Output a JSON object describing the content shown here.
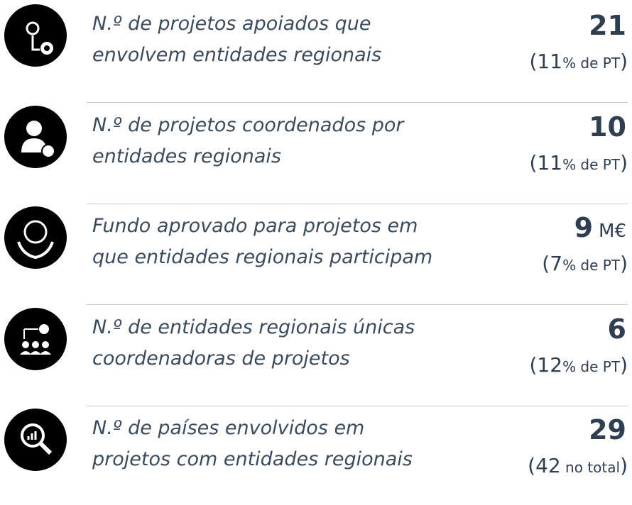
{
  "items": [
    {
      "line1": "N.º de projetos apoiados que",
      "line2": "envolvem entidades regionais",
      "value": 21,
      "unit": null,
      "sub": [
        "(",
        "11",
        "% de PT",
        ")"
      ]
    },
    {
      "line1": "N.º de projetos coordenados por",
      "line2": "entidades regionais",
      "value": 10,
      "unit": null,
      "sub": [
        "(",
        "11",
        "% de PT",
        ")"
      ]
    },
    {
      "line1": "Fundo aprovado para projetos em",
      "line2": "que entidades regionais participam",
      "value": 9,
      "unit": "M€",
      "sub": [
        "(",
        "7",
        "% de PT",
        ")"
      ]
    },
    {
      "line1": "N.º de entidades regionais únicas",
      "line2": "coordenadoras de projetos",
      "value": 6,
      "unit": null,
      "sub": [
        "(",
        "12",
        "% de PT",
        ")"
      ]
    },
    {
      "line1": "N.º de países envolvidos em",
      "line2": "projetos com entidades regionais",
      "value": 29,
      "unit": null,
      "sub": [
        "(",
        "42",
        " no total",
        ")"
      ]
    }
  ]
}
